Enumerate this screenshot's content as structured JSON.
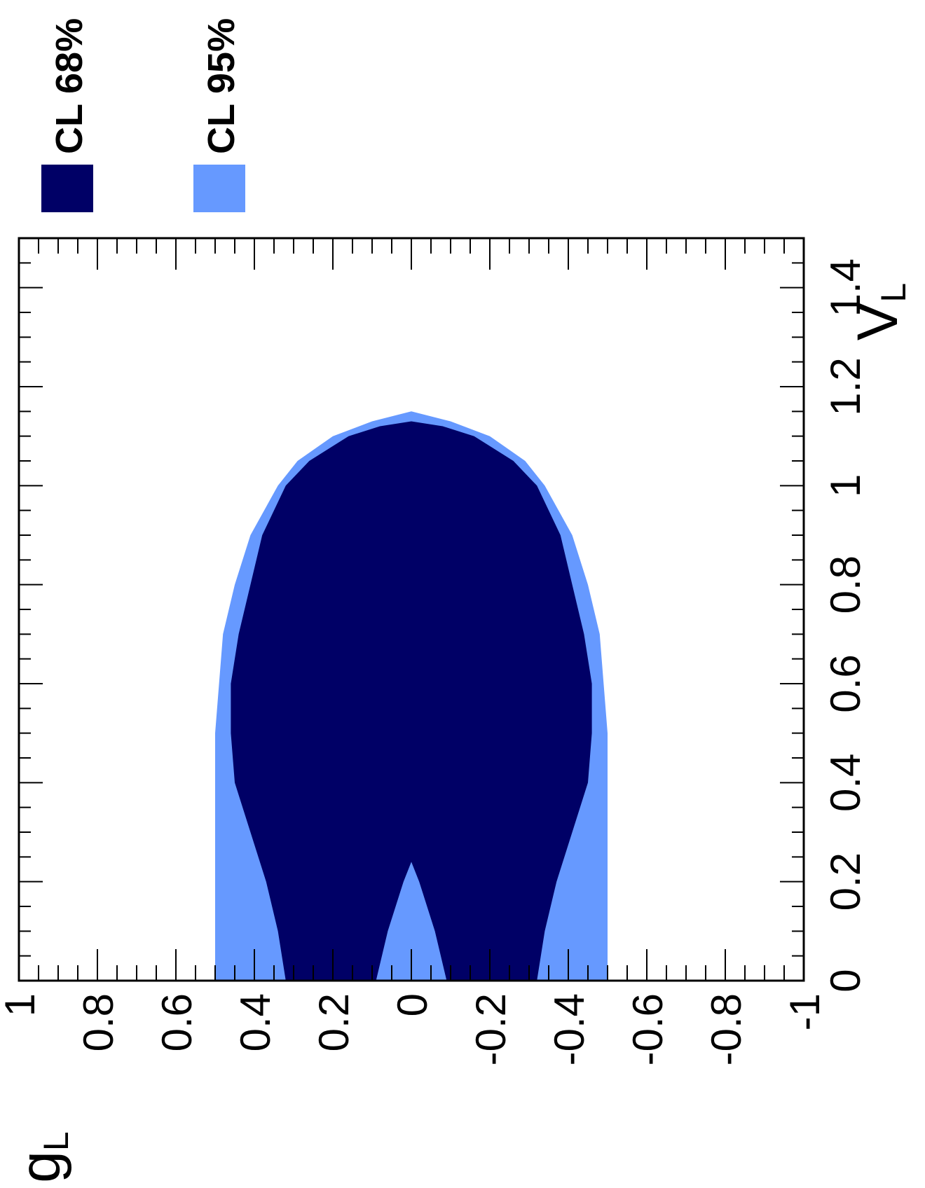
{
  "chart_data": {
    "type": "scatter",
    "orientation": "rotated-90",
    "xaxis": {
      "label": "V",
      "label_sub": "L",
      "range": [
        0,
        1.5
      ],
      "ticks": [
        "0",
        "0.2",
        "0.4",
        "0.6",
        "0.8",
        "1",
        "1.2",
        "1.4"
      ]
    },
    "yaxis": {
      "label": "g",
      "label_sub": "L",
      "range": [
        -1,
        1
      ],
      "ticks": [
        "-1",
        "-0.8",
        "-0.6",
        "-0.4",
        "-0.2",
        "0",
        "0.2",
        "0.4",
        "0.6",
        "0.8",
        "1"
      ]
    },
    "legend": {
      "placement": "outside-top",
      "entries": [
        {
          "label": "CL 68%",
          "color": "#000066"
        },
        {
          "label": "CL 95%",
          "color": "#6699ff"
        }
      ]
    },
    "series": [
      {
        "name": "CL 95%",
        "color": "#6699ff",
        "region_boundary_upper_gL": [
          [
            0,
            0.5
          ],
          [
            0.1,
            0.5
          ],
          [
            0.2,
            0.5
          ],
          [
            0.3,
            0.5
          ],
          [
            0.4,
            0.5
          ],
          [
            0.5,
            0.5
          ],
          [
            0.6,
            0.49
          ],
          [
            0.7,
            0.48
          ],
          [
            0.8,
            0.45
          ],
          [
            0.9,
            0.41
          ],
          [
            1.0,
            0.34
          ],
          [
            1.05,
            0.29
          ],
          [
            1.1,
            0.2
          ],
          [
            1.13,
            0.1
          ],
          [
            1.15,
            0.0
          ]
        ],
        "region_boundary_lower_gL": [
          [
            0,
            -0.5
          ],
          [
            0.1,
            -0.5
          ],
          [
            0.2,
            -0.5
          ],
          [
            0.3,
            -0.5
          ],
          [
            0.4,
            -0.5
          ],
          [
            0.5,
            -0.5
          ],
          [
            0.6,
            -0.49
          ],
          [
            0.7,
            -0.48
          ],
          [
            0.8,
            -0.45
          ],
          [
            0.9,
            -0.41
          ],
          [
            1.0,
            -0.34
          ],
          [
            1.05,
            -0.29
          ],
          [
            1.1,
            -0.2
          ],
          [
            1.13,
            -0.1
          ],
          [
            1.15,
            0.0
          ]
        ]
      },
      {
        "name": "CL 68%",
        "color": "#000066",
        "region_boundary_upper_gL": [
          [
            0,
            0.32
          ],
          [
            0.1,
            0.34
          ],
          [
            0.2,
            0.37
          ],
          [
            0.3,
            0.41
          ],
          [
            0.4,
            0.45
          ],
          [
            0.5,
            0.46
          ],
          [
            0.6,
            0.46
          ],
          [
            0.7,
            0.44
          ],
          [
            0.8,
            0.41
          ],
          [
            0.9,
            0.38
          ],
          [
            1.0,
            0.32
          ],
          [
            1.05,
            0.26
          ],
          [
            1.1,
            0.16
          ],
          [
            1.12,
            0.08
          ],
          [
            1.13,
            0.0
          ]
        ],
        "region_boundary_lower_gL": [
          [
            0,
            -0.32
          ],
          [
            0.1,
            -0.34
          ],
          [
            0.2,
            -0.37
          ],
          [
            0.3,
            -0.41
          ],
          [
            0.4,
            -0.45
          ],
          [
            0.5,
            -0.46
          ],
          [
            0.6,
            -0.46
          ],
          [
            0.7,
            -0.44
          ],
          [
            0.8,
            -0.41
          ],
          [
            0.9,
            -0.38
          ],
          [
            1.0,
            -0.32
          ],
          [
            1.05,
            -0.26
          ],
          [
            1.1,
            -0.16
          ],
          [
            1.12,
            -0.08
          ],
          [
            1.13,
            0.0
          ]
        ],
        "inner_gap_gL": [
          [
            0,
            0.09
          ],
          [
            0.1,
            0.06
          ],
          [
            0.2,
            0.02
          ],
          [
            0.24,
            0.0
          ]
        ]
      }
    ]
  }
}
